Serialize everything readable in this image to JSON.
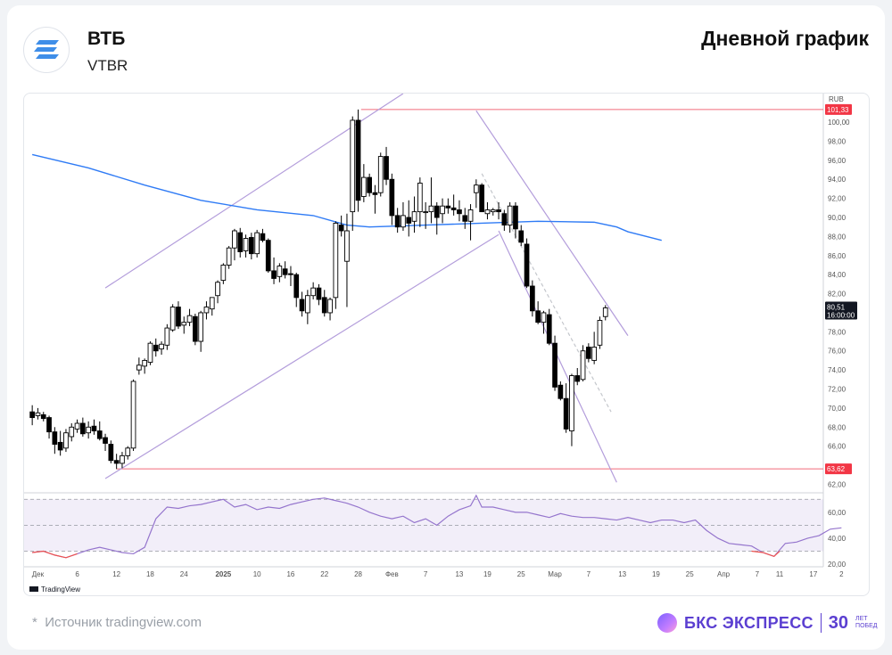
{
  "header": {
    "company": "ВТБ",
    "ticker": "VTBR",
    "title": "Дневной график",
    "logo_icon": "bars-logo-icon"
  },
  "footer": {
    "source_note": "Источник tradingview.com",
    "source_marker": "*",
    "brand_name": "БКС ЭКСПРЕСС",
    "brand_years": "30",
    "brand_tagline_1": "ЛЕТ",
    "brand_tagline_2": "ПОБЕД"
  },
  "chart_data": {
    "type": "candlestick",
    "currency_label": "RUB",
    "tradingview_label": "TradingView",
    "y_ticks": [
      "100,00",
      "98,00",
      "96,00",
      "94,00",
      "92,00",
      "90,00",
      "88,00",
      "86,00",
      "84,00",
      "82,00",
      "78,00",
      "76,00",
      "74,00",
      "72,00",
      "70,00",
      "68,00",
      "66,00",
      "62,00"
    ],
    "y_tick_values": [
      100,
      98,
      96,
      94,
      92,
      90,
      88,
      86,
      84,
      82,
      78,
      76,
      74,
      72,
      70,
      68,
      66,
      62
    ],
    "ylim": [
      61.2,
      103
    ],
    "x_ticks": [
      "Дек",
      "6",
      "12",
      "18",
      "24",
      "2025",
      "10",
      "16",
      "22",
      "28",
      "Фев",
      "7",
      "13",
      "19",
      "25",
      "Мар",
      "7",
      "13",
      "19",
      "25",
      "Апр",
      "7",
      "11",
      "17",
      "2"
    ],
    "x_tick_positions": [
      1,
      8,
      15,
      21,
      27,
      34,
      40,
      46,
      52,
      58,
      64,
      70,
      76,
      81,
      87,
      93,
      99,
      105,
      111,
      117,
      123,
      129,
      133,
      139,
      144
    ],
    "rsi_ticks": [
      "60,00",
      "40,00",
      "20,00"
    ],
    "rsi_tick_values": [
      60,
      40,
      20
    ],
    "rsi_ylim": [
      18,
      75
    ],
    "rsi_bands": [
      70,
      50,
      30
    ],
    "price_labels": {
      "high": "101,33",
      "low": "63,62",
      "last": "80,51",
      "last_time": "16:00:00"
    },
    "levels": [
      101.33,
      63.62
    ],
    "candles": [
      [
        69.6,
        70.3,
        68.2,
        69.0
      ],
      [
        69.2,
        70.0,
        68.8,
        69.5
      ],
      [
        69.3,
        69.6,
        68.6,
        68.9
      ],
      [
        69.0,
        69.2,
        66.8,
        67.5
      ],
      [
        67.5,
        68.0,
        65.2,
        66.2
      ],
      [
        66.4,
        67.6,
        65.0,
        65.6
      ],
      [
        65.8,
        67.8,
        65.4,
        67.4
      ],
      [
        67.0,
        68.4,
        66.5,
        68.0
      ],
      [
        67.8,
        68.8,
        67.4,
        68.4
      ],
      [
        68.4,
        69.0,
        67.0,
        67.3
      ],
      [
        67.4,
        68.6,
        66.8,
        68.0
      ],
      [
        68.1,
        68.8,
        67.2,
        67.6
      ],
      [
        67.6,
        68.6,
        66.6,
        66.8
      ],
      [
        66.9,
        67.3,
        65.5,
        66.3
      ],
      [
        66.2,
        66.6,
        64.2,
        64.5
      ],
      [
        64.5,
        65.2,
        63.6,
        64.2
      ],
      [
        64.2,
        65.4,
        63.7,
        65.0
      ],
      [
        65.0,
        66.0,
        64.6,
        65.8
      ],
      [
        65.8,
        73.0,
        65.5,
        72.8
      ],
      [
        74.0,
        75.3,
        73.5,
        74.5
      ],
      [
        74.4,
        75.2,
        73.6,
        75.0
      ],
      [
        74.8,
        77.0,
        74.5,
        76.8
      ],
      [
        76.6,
        77.3,
        75.4,
        76.0
      ],
      [
        76.2,
        77.0,
        75.6,
        76.7
      ],
      [
        76.6,
        78.8,
        76.1,
        78.4
      ],
      [
        78.2,
        80.9,
        78.0,
        80.6
      ],
      [
        80.6,
        81.2,
        78.3,
        78.6
      ],
      [
        78.7,
        79.6,
        77.8,
        79.0
      ],
      [
        79.0,
        80.4,
        78.6,
        79.7
      ],
      [
        79.6,
        79.9,
        76.6,
        77.0
      ],
      [
        77.0,
        80.2,
        75.9,
        80.0
      ],
      [
        80.0,
        81.2,
        79.3,
        80.6
      ],
      [
        80.4,
        81.6,
        79.7,
        81.6
      ],
      [
        81.8,
        83.4,
        81.0,
        83.2
      ],
      [
        83.4,
        85.2,
        83.0,
        85.0
      ],
      [
        85.0,
        87.0,
        84.6,
        86.8
      ],
      [
        86.8,
        88.8,
        85.5,
        88.6
      ],
      [
        88.4,
        88.9,
        85.8,
        86.4
      ],
      [
        86.5,
        88.2,
        85.8,
        87.8
      ],
      [
        87.9,
        88.4,
        85.6,
        86.2
      ],
      [
        86.2,
        88.7,
        85.8,
        88.4
      ],
      [
        88.3,
        88.8,
        87.4,
        87.6
      ],
      [
        87.6,
        87.8,
        84.2,
        84.4
      ],
      [
        84.4,
        85.8,
        83.0,
        83.6
      ],
      [
        83.8,
        85.2,
        83.2,
        84.9
      ],
      [
        84.6,
        85.4,
        83.6,
        84.0
      ],
      [
        84.1,
        84.9,
        82.8,
        84.0
      ],
      [
        84.0,
        84.2,
        80.6,
        81.6
      ],
      [
        81.4,
        82.2,
        79.6,
        80.2
      ],
      [
        80.0,
        82.4,
        78.8,
        81.8
      ],
      [
        81.8,
        83.2,
        81.4,
        82.6
      ],
      [
        82.6,
        83.0,
        80.8,
        81.4
      ],
      [
        81.6,
        82.4,
        79.6,
        80.0
      ],
      [
        80.0,
        81.6,
        79.2,
        81.4
      ],
      [
        81.6,
        89.6,
        80.4,
        89.4
      ],
      [
        89.2,
        90.2,
        88.0,
        88.6
      ],
      [
        85.4,
        90.4,
        80.6,
        88.6
      ],
      [
        90.6,
        100.6,
        88.6,
        100.2
      ],
      [
        100.2,
        101.33,
        90.6,
        91.8
      ],
      [
        92.2,
        95.6,
        91.6,
        94.2
      ],
      [
        94.2,
        94.6,
        92.2,
        92.6
      ],
      [
        92.6,
        93.4,
        90.4,
        92.4
      ],
      [
        92.6,
        96.8,
        92.2,
        96.4
      ],
      [
        96.4,
        97.4,
        93.4,
        94.0
      ],
      [
        94.0,
        94.6,
        89.2,
        90.2
      ],
      [
        90.2,
        91.0,
        88.4,
        89.0
      ],
      [
        89.0,
        91.6,
        88.6,
        90.2
      ],
      [
        90.0,
        91.8,
        88.0,
        89.4
      ],
      [
        89.6,
        92.2,
        88.4,
        90.6
      ],
      [
        90.6,
        94.2,
        89.0,
        93.6
      ],
      [
        90.6,
        91.6,
        88.8,
        90.6
      ],
      [
        90.6,
        94.2,
        89.4,
        91.2
      ],
      [
        91.2,
        91.6,
        88.2,
        90.0
      ],
      [
        90.4,
        92.0,
        89.4,
        91.2
      ],
      [
        91.2,
        92.0,
        90.4,
        91.0
      ],
      [
        91.0,
        92.4,
        90.2,
        90.8
      ],
      [
        90.8,
        91.8,
        89.6,
        90.4
      ],
      [
        90.2,
        91.0,
        88.8,
        89.6
      ],
      [
        89.6,
        91.4,
        87.6,
        90.8
      ],
      [
        92.6,
        94.0,
        91.0,
        93.4
      ],
      [
        93.4,
        93.6,
        91.0,
        90.6
      ],
      [
        90.4,
        91.6,
        89.8,
        90.8
      ],
      [
        90.6,
        91.0,
        90.2,
        90.8
      ],
      [
        90.8,
        91.6,
        89.8,
        90.6
      ],
      [
        90.4,
        90.8,
        88.6,
        89.2
      ],
      [
        89.2,
        91.6,
        88.4,
        91.2
      ],
      [
        91.2,
        91.6,
        87.8,
        88.8
      ],
      [
        88.6,
        89.2,
        87.0,
        87.4
      ],
      [
        87.2,
        87.8,
        82.6,
        82.8
      ],
      [
        82.8,
        83.4,
        79.6,
        80.2
      ],
      [
        80.2,
        81.2,
        78.8,
        79.0
      ],
      [
        79.0,
        80.2,
        77.8,
        80.0
      ],
      [
        79.8,
        80.4,
        76.6,
        76.8
      ],
      [
        76.8,
        77.6,
        71.8,
        72.2
      ],
      [
        72.4,
        72.8,
        70.8,
        71.0
      ],
      [
        71.0,
        72.6,
        67.4,
        67.8
      ],
      [
        67.6,
        73.6,
        66.0,
        73.4
      ],
      [
        73.4,
        74.2,
        72.4,
        72.8
      ],
      [
        73.0,
        76.6,
        72.8,
        76.0
      ],
      [
        76.4,
        76.8,
        74.8,
        75.2
      ],
      [
        75.0,
        78.0,
        74.6,
        76.4
      ],
      [
        76.6,
        79.6,
        76.2,
        79.2
      ],
      [
        79.6,
        80.8,
        79.2,
        80.51
      ]
    ],
    "ma_line": [
      [
        0,
        96.6
      ],
      [
        10,
        95.2
      ],
      [
        20,
        93.4
      ],
      [
        30,
        91.8
      ],
      [
        40,
        90.8
      ],
      [
        50,
        90.2
      ],
      [
        56,
        89.2
      ],
      [
        60,
        89.0
      ],
      [
        70,
        89.2
      ],
      [
        80,
        89.4
      ],
      [
        90,
        89.6
      ],
      [
        100,
        89.5
      ],
      [
        104,
        89.0
      ],
      [
        106,
        88.5
      ],
      [
        112,
        87.6
      ]
    ],
    "trend_channels": [
      {
        "from": [
          13,
          82.6
        ],
        "to": [
          66,
          103.0
        ]
      },
      {
        "from": [
          13,
          62.6
        ],
        "to": [
          83,
          88.2
        ]
      },
      {
        "from": [
          79,
          101.2
        ],
        "to": [
          106,
          77.6
        ]
      },
      {
        "from": [
          83,
          88.6
        ],
        "to": [
          104,
          62.2
        ]
      },
      {
        "from": [
          80,
          94.6
        ],
        "to": [
          103,
          69.6
        ],
        "dashed": true
      }
    ],
    "rsi": [
      [
        0,
        29
      ],
      [
        2,
        30
      ],
      [
        4,
        27
      ],
      [
        6,
        25
      ],
      [
        8,
        28
      ],
      [
        10,
        31
      ],
      [
        12,
        33
      ],
      [
        14,
        31
      ],
      [
        16,
        29
      ],
      [
        18,
        28
      ],
      [
        20,
        33
      ],
      [
        22,
        55
      ],
      [
        24,
        64
      ],
      [
        26,
        63
      ],
      [
        28,
        65
      ],
      [
        30,
        66
      ],
      [
        32,
        68
      ],
      [
        34,
        70
      ],
      [
        36,
        64
      ],
      [
        38,
        66
      ],
      [
        40,
        62
      ],
      [
        42,
        64
      ],
      [
        44,
        63
      ],
      [
        46,
        66
      ],
      [
        48,
        68
      ],
      [
        50,
        70
      ],
      [
        52,
        71
      ],
      [
        54,
        69
      ],
      [
        56,
        67
      ],
      [
        58,
        64
      ],
      [
        60,
        60
      ],
      [
        62,
        57
      ],
      [
        64,
        55
      ],
      [
        66,
        57
      ],
      [
        68,
        52
      ],
      [
        70,
        55
      ],
      [
        72,
        50
      ],
      [
        74,
        57
      ],
      [
        76,
        62
      ],
      [
        78,
        65
      ],
      [
        79,
        73
      ],
      [
        80,
        64
      ],
      [
        82,
        64
      ],
      [
        84,
        62
      ],
      [
        86,
        60
      ],
      [
        88,
        60
      ],
      [
        90,
        58
      ],
      [
        92,
        56
      ],
      [
        94,
        59
      ],
      [
        96,
        57
      ],
      [
        98,
        56
      ],
      [
        100,
        56
      ],
      [
        102,
        55
      ],
      [
        104,
        54
      ],
      [
        106,
        56
      ],
      [
        108,
        54
      ],
      [
        110,
        52
      ],
      [
        112,
        54
      ],
      [
        114,
        54
      ],
      [
        116,
        52
      ],
      [
        118,
        54
      ],
      [
        120,
        46
      ],
      [
        122,
        40
      ],
      [
        124,
        36
      ],
      [
        126,
        35
      ],
      [
        128,
        34
      ],
      [
        130,
        29
      ],
      [
        132,
        26
      ],
      [
        134,
        36
      ],
      [
        136,
        37
      ],
      [
        138,
        40
      ],
      [
        140,
        42
      ],
      [
        142,
        47
      ],
      [
        144,
        48
      ]
    ]
  }
}
